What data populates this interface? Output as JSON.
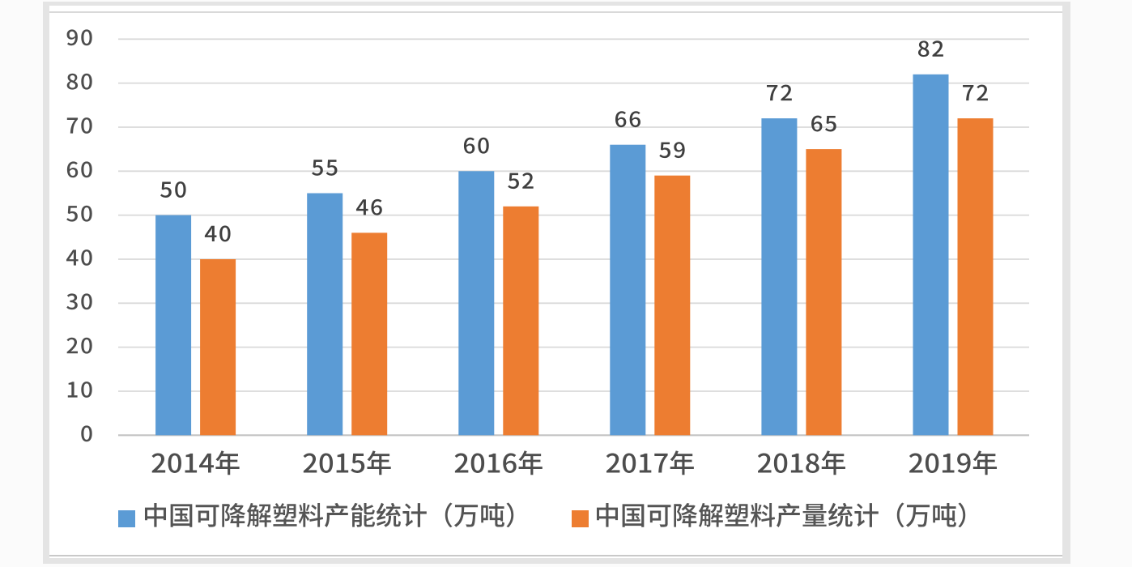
{
  "chart_data": {
    "type": "bar",
    "title": "",
    "xlabel": "",
    "ylabel": "",
    "categories": [
      "2014年",
      "2015年",
      "2016年",
      "2017年",
      "2018年",
      "2019年"
    ],
    "series": [
      {
        "name": "中国可降解塑料产能统计（万吨）",
        "color": "#5B9BD5",
        "values": [
          50,
          55,
          60,
          66,
          72,
          82
        ]
      },
      {
        "name": "中国可降解塑料产量统计（万吨）",
        "color": "#ED7D31",
        "values": [
          40,
          46,
          52,
          59,
          65,
          72
        ]
      }
    ],
    "yticks": [
      0,
      10,
      20,
      30,
      40,
      50,
      60,
      70,
      80,
      90
    ],
    "ylim": [
      0,
      90
    ],
    "grid": "horizontal",
    "legend_position": "bottom",
    "data_labels": "outside-end"
  },
  "style": {
    "bar_blue": "#5B9BD5",
    "bar_orange": "#ED7D31",
    "gridline_color": "#d9d9d9",
    "axis_line_color": "#c3c3c3",
    "tick_label_color": "#4d4d4d",
    "category_label_color": "#4d4d4d",
    "data_label_color": "#3f3f3f",
    "legend_text_color": "#545454",
    "chart_background": "#ffffff",
    "page_background": "#fbfbfb",
    "frame_color": "#e4e4e4"
  }
}
